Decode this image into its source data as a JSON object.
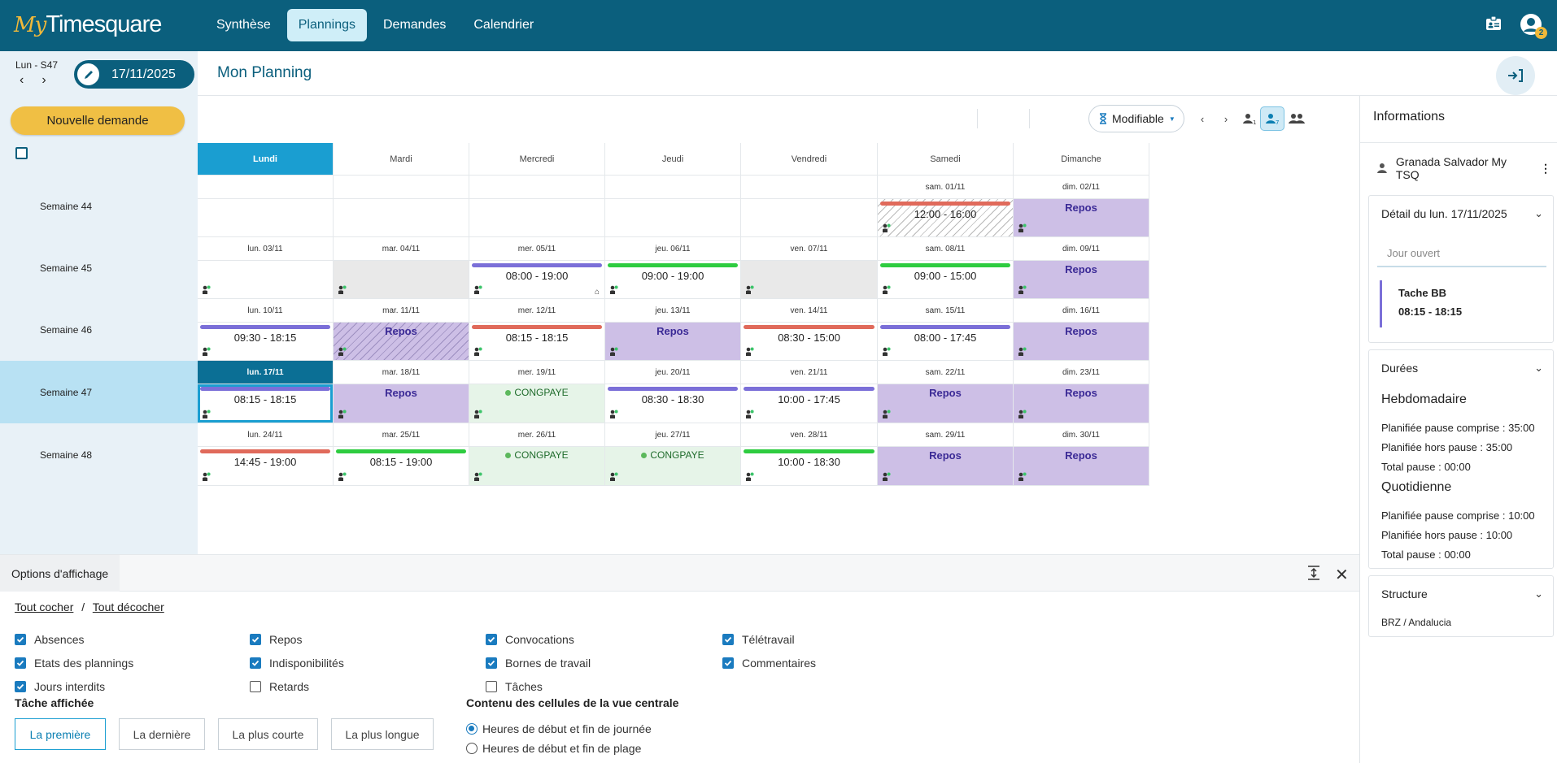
{
  "header": {
    "logo_my": "My",
    "logo_ts": "Timesquare",
    "nav": [
      "Synthèse",
      "Plannings",
      "Demandes",
      "Calendrier"
    ],
    "nav_active": 1,
    "notif_count": "2"
  },
  "subbar": {
    "week_label": "Lun - S47",
    "date": "17/11/2025",
    "title": "Mon Planning"
  },
  "sidebar": {
    "new_request": "Nouvelle demande"
  },
  "toolbar": {
    "mode": "Modifiable"
  },
  "days": [
    "Lundi",
    "Mardi",
    "Mercredi",
    "Jeudi",
    "Vendredi",
    "Samedi",
    "Dimanche"
  ],
  "weeks": [
    {
      "label": "Semaine 44",
      "cells": [
        {
          "date": "",
          "type": "empty"
        },
        {
          "date": "",
          "type": "empty"
        },
        {
          "date": "",
          "type": "empty"
        },
        {
          "date": "",
          "type": "empty"
        },
        {
          "date": "",
          "type": "empty"
        },
        {
          "date": "sam. 01/11",
          "type": "hatch",
          "text": "12:00 - 16:00",
          "bar": "#e06a5b"
        },
        {
          "date": "dim. 02/11",
          "type": "repos",
          "text": "Repos"
        }
      ]
    },
    {
      "label": "Semaine 45",
      "cells": [
        {
          "date": "lun. 03/11",
          "type": "white",
          "text": ""
        },
        {
          "date": "mar. 04/11",
          "type": "grey",
          "text": ""
        },
        {
          "date": "mer. 05/11",
          "type": "white",
          "text": "08:00 - 19:00",
          "bar": "#7b6fd8",
          "home": true
        },
        {
          "date": "jeu. 06/11",
          "type": "white",
          "text": "09:00 - 19:00",
          "bar": "#2ecc40"
        },
        {
          "date": "ven. 07/11",
          "type": "grey",
          "text": ""
        },
        {
          "date": "sam. 08/11",
          "type": "white",
          "text": "09:00 - 15:00",
          "bar": "#2ecc40"
        },
        {
          "date": "dim. 09/11",
          "type": "repos",
          "text": "Repos"
        }
      ]
    },
    {
      "label": "Semaine 46",
      "cells": [
        {
          "date": "lun. 10/11",
          "type": "white",
          "text": "09:30 - 18:15",
          "bar": "#7b6fd8"
        },
        {
          "date": "mar. 11/11",
          "type": "reposhatch",
          "text": "Repos"
        },
        {
          "date": "mer. 12/11",
          "type": "white",
          "text": "08:15 - 18:15",
          "bar": "#e06a5b"
        },
        {
          "date": "jeu. 13/11",
          "type": "repos",
          "text": "Repos"
        },
        {
          "date": "ven. 14/11",
          "type": "white",
          "text": "08:30 - 15:00",
          "bar": "#e06a5b"
        },
        {
          "date": "sam. 15/11",
          "type": "white",
          "text": "08:00 - 17:45",
          "bar": "#7b6fd8"
        },
        {
          "date": "dim. 16/11",
          "type": "repos",
          "text": "Repos"
        }
      ]
    },
    {
      "label": "Semaine 47",
      "selected": true,
      "cells": [
        {
          "date": "lun. 17/11",
          "type": "white",
          "text": "08:15 - 18:15",
          "bar": "#7b6fd8",
          "current": true
        },
        {
          "date": "mar. 18/11",
          "type": "repos",
          "text": "Repos"
        },
        {
          "date": "mer. 19/11",
          "type": "cong",
          "text": "CONGPAYE"
        },
        {
          "date": "jeu. 20/11",
          "type": "white",
          "text": "08:30 - 18:30",
          "bar": "#7b6fd8"
        },
        {
          "date": "ven. 21/11",
          "type": "white",
          "text": "10:00 - 17:45",
          "bar": "#7b6fd8"
        },
        {
          "date": "sam. 22/11",
          "type": "repos",
          "text": "Repos"
        },
        {
          "date": "dim. 23/11",
          "type": "repos",
          "text": "Repos"
        }
      ]
    },
    {
      "label": "Semaine 48",
      "cells": [
        {
          "date": "lun. 24/11",
          "type": "white",
          "text": "14:45 - 19:00",
          "bar": "#e06a5b"
        },
        {
          "date": "mar. 25/11",
          "type": "white",
          "text": "08:15 - 19:00",
          "bar": "#2ecc40"
        },
        {
          "date": "mer. 26/11",
          "type": "cong",
          "text": "CONGPAYE"
        },
        {
          "date": "jeu. 27/11",
          "type": "cong",
          "text": "CONGPAYE"
        },
        {
          "date": "ven. 28/11",
          "type": "white",
          "text": "10:00 - 18:30",
          "bar": "#2ecc40"
        },
        {
          "date": "sam. 29/11",
          "type": "repos",
          "text": "Repos"
        },
        {
          "date": "dim. 30/11",
          "type": "repos",
          "text": "Repos"
        }
      ]
    }
  ],
  "info": {
    "title": "Informations",
    "user": "Granada Salvador My TSQ",
    "detail_title": "Détail du lun. 17/11/2025",
    "jour": "Jour ouvert",
    "task_name": "Tache BB",
    "task_time": "08:15 - 18:15",
    "durations_title": "Durées",
    "weekly_title": "Hebdomadaire",
    "weekly": [
      "Planifiée pause comprise : 35:00",
      "Planifiée hors pause : 35:00",
      "Total pause : 00:00"
    ],
    "daily_title": "Quotidienne",
    "daily": [
      "Planifiée pause comprise : 10:00",
      "Planifiée hors pause : 10:00",
      "Total pause : 00:00"
    ],
    "structure_title": "Structure",
    "structure": "BRZ / Andalucia"
  },
  "options": {
    "title": "Options d'affichage",
    "check_all": "Tout cocher",
    "sep": "/",
    "uncheck_all": "Tout décocher",
    "checkboxes": [
      {
        "label": "Absences",
        "on": true
      },
      {
        "label": "Repos",
        "on": true
      },
      {
        "label": "Convocations",
        "on": true
      },
      {
        "label": "Télétravail",
        "on": true
      },
      {
        "label": "Etats des plannings",
        "on": true
      },
      {
        "label": "Indisponibilités",
        "on": true
      },
      {
        "label": "Bornes de travail",
        "on": true
      },
      {
        "label": "Commentaires",
        "on": true
      },
      {
        "label": "Jours interdits",
        "on": true
      },
      {
        "label": "Retards",
        "on": false
      },
      {
        "label": "Tâches",
        "on": false
      }
    ],
    "task_title": "Tâche affichée",
    "task_buttons": [
      "La première",
      "La dernière",
      "La plus courte",
      "La plus longue"
    ],
    "task_selected": 0,
    "content_title": "Contenu des cellules de la vue centrale",
    "radios": [
      "Heures de début et fin de journée",
      "Heures de début et fin de plage"
    ],
    "radio_selected": 0
  }
}
